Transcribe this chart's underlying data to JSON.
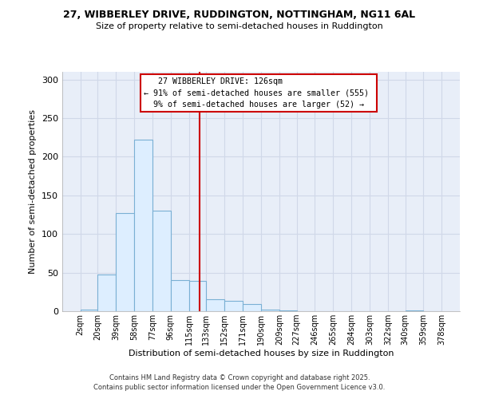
{
  "title1": "27, WIBBERLEY DRIVE, RUDDINGTON, NOTTINGHAM, NG11 6AL",
  "title2": "Size of property relative to semi-detached houses in Ruddington",
  "xlabel": "Distribution of semi-detached houses by size in Ruddington",
  "ylabel": "Number of semi-detached properties",
  "footnote1": "Contains HM Land Registry data © Crown copyright and database right 2025.",
  "footnote2": "Contains public sector information licensed under the Open Government Licence v3.0.",
  "annotation_title": "27 WIBBERLEY DRIVE: 126sqm",
  "annotation_line1": "← 91% of semi-detached houses are smaller (555)",
  "annotation_line2": "9% of semi-detached houses are larger (52) →",
  "property_size": 126,
  "bin_edges": [
    2,
    20,
    39,
    58,
    77,
    96,
    115,
    133,
    152,
    171,
    190,
    209,
    227,
    246,
    265,
    284,
    303,
    322,
    340,
    359,
    378
  ],
  "bar_heights": [
    2,
    48,
    127,
    222,
    130,
    40,
    39,
    15,
    13,
    9,
    2,
    1,
    0,
    0,
    0,
    0,
    0,
    0,
    1,
    0
  ],
  "bar_color": "#ddeeff",
  "bar_edge_color": "#7ab0d4",
  "vline_color": "#cc0000",
  "box_edge_color": "#cc0000",
  "box_face_color": "#ffffff",
  "ylim": [
    0,
    310
  ],
  "yticks": [
    0,
    50,
    100,
    150,
    200,
    250,
    300
  ],
  "grid_color": "#d0d8e8",
  "bg_color": "#ffffff",
  "plot_bg_color": "#e8eef8"
}
